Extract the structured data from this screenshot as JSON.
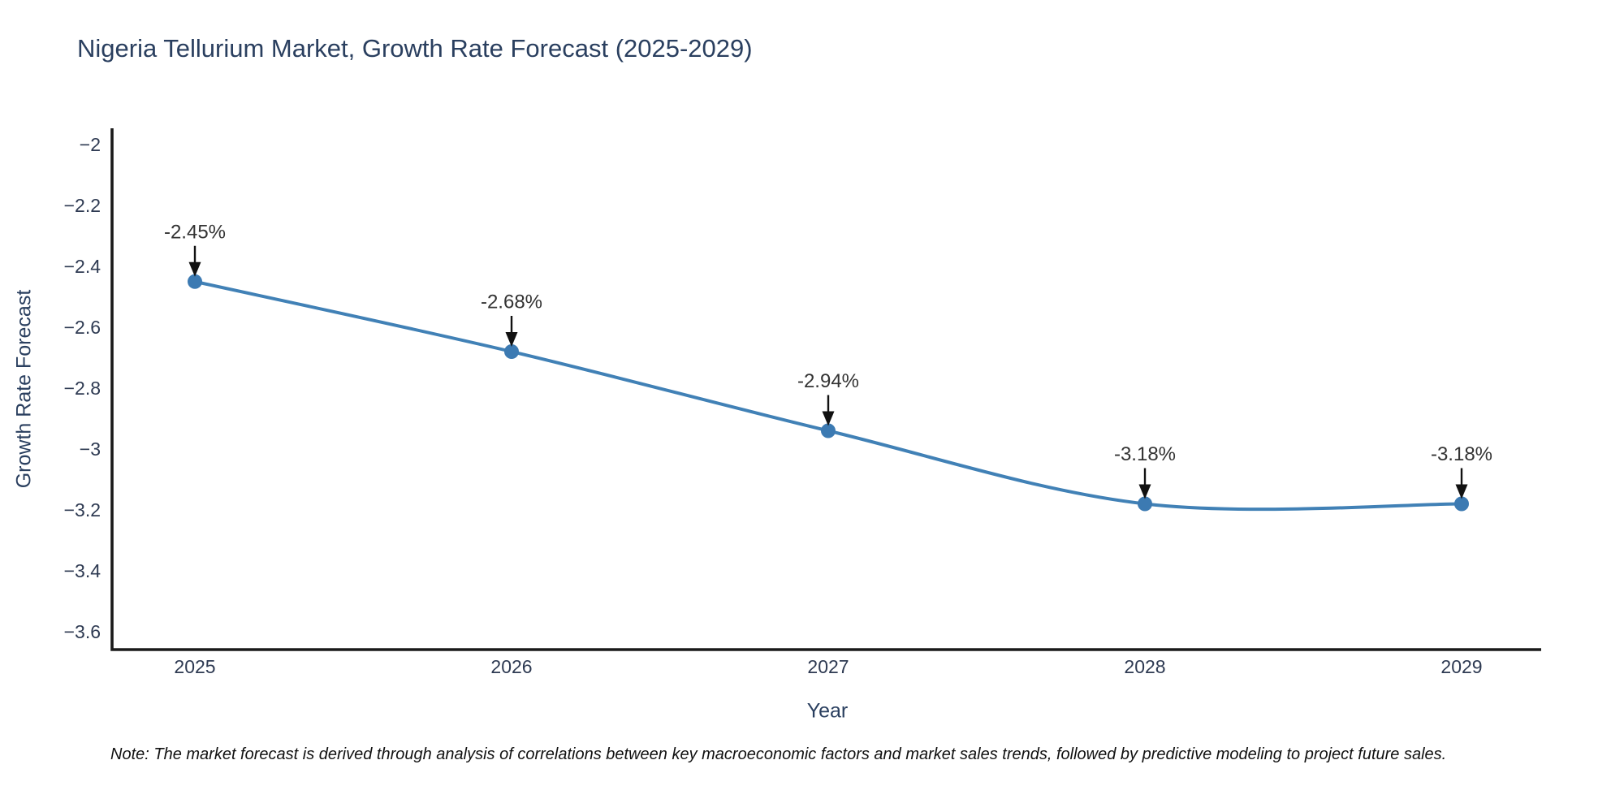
{
  "page": {
    "note": "Note: The market forecast is derived through analysis of correlations between key macroeconomic factors and market sales trends, followed by predictive modeling to project future sales."
  },
  "chart_data": {
    "type": "line",
    "title": "Nigeria Tellurium Market, Growth Rate Forecast (2025-2029)",
    "xlabel": "Year",
    "ylabel": "Growth Rate Forecast",
    "x": [
      2025,
      2026,
      2027,
      2028,
      2029
    ],
    "series": [
      {
        "name": "Growth Rate Forecast",
        "values": [
          -2.45,
          -2.68,
          -2.94,
          -3.18,
          -3.18
        ]
      }
    ],
    "point_labels": [
      "-2.45%",
      "-2.68%",
      "-2.94%",
      "-3.18%",
      "-3.18%"
    ],
    "ylim": [
      -3.66,
      -1.95
    ],
    "yticks": [
      -2,
      -2.2,
      -2.4,
      -2.6,
      -2.8,
      -3,
      -3.2,
      -3.4,
      -3.6
    ],
    "ytick_labels": [
      "−2",
      "−2.2",
      "−2.4",
      "−2.6",
      "−2.8",
      "−3",
      "−3.2",
      "−3.4",
      "−3.6"
    ],
    "xtick_labels": [
      "2025",
      "2026",
      "2027",
      "2028",
      "2029"
    ],
    "grid": false,
    "legend": false,
    "line_shape": "spline",
    "annotation_style": "arrow-down-to-point"
  },
  "colors": {
    "background": "#ffffff",
    "line": "#4181b6",
    "marker": "#3c7ab2",
    "axis": "#1a1a1a",
    "heading_text": "#2a3f5f",
    "tick_text": "#2e3a52",
    "annotation_text": "#333333",
    "arrow": "#111111",
    "note_text": "#111111"
  }
}
